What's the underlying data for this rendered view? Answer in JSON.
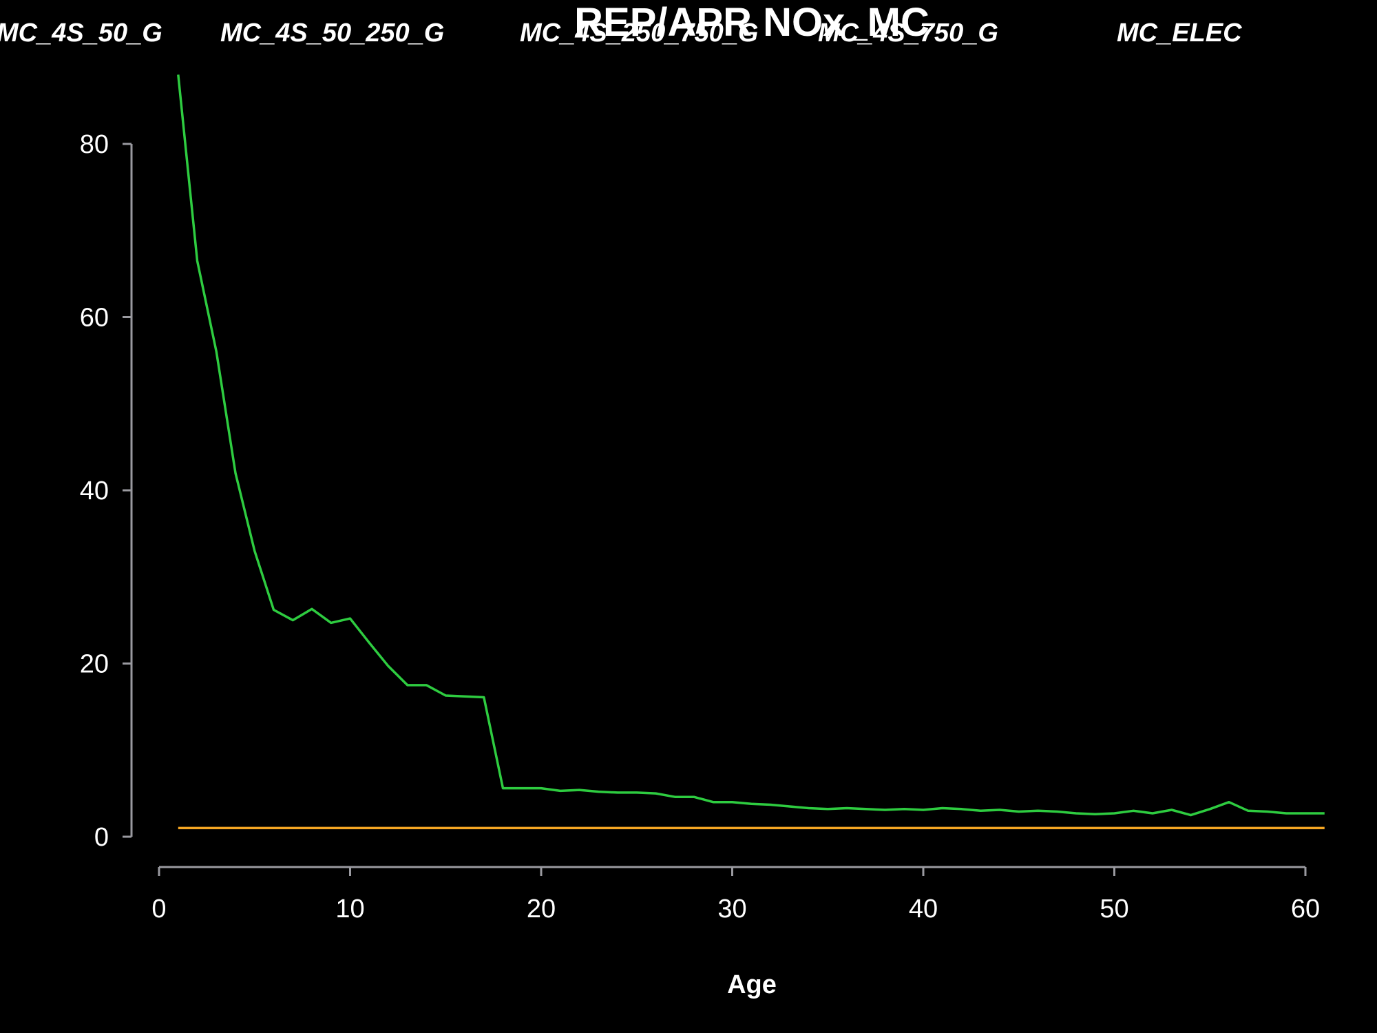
{
  "chart_data": {
    "type": "line",
    "title": "REP/APR NOx_MC",
    "xlabel": "Age",
    "ylabel": "",
    "xlim": [
      0,
      61
    ],
    "ylim": [
      0,
      88
    ],
    "xticks": [
      0,
      10,
      20,
      30,
      40,
      50,
      60
    ],
    "yticks": [
      0,
      20,
      40,
      60,
      80
    ],
    "grid": false,
    "legend_position": "top",
    "legend": [
      "MC_4S_50_G",
      "MC_4S_50_250_G",
      "MC_4S_250_750_G",
      "MC_4S_750_G",
      "MC_ELEC"
    ],
    "colors": {
      "background": "#000000",
      "axis": "#9a9aa0",
      "text": "#ffffff"
    },
    "series": [
      {
        "color": "#2ecc40",
        "x": [
          1,
          2,
          3,
          4,
          5,
          6,
          7,
          8,
          9,
          10,
          11,
          12,
          13,
          14,
          15,
          16,
          17,
          18,
          19,
          20,
          21,
          22,
          23,
          24,
          25,
          26,
          27,
          28,
          29,
          30,
          31,
          32,
          33,
          34,
          35,
          36,
          37,
          38,
          39,
          40,
          41,
          42,
          43,
          44,
          45,
          46,
          47,
          48,
          49,
          50,
          51,
          52,
          53,
          54,
          55,
          56,
          57,
          58,
          59,
          60,
          61
        ],
        "values": [
          88,
          66.5,
          56,
          42,
          33,
          26.2,
          25,
          26.3,
          24.7,
          25.2,
          22.4,
          19.7,
          17.5,
          17.5,
          16.3,
          16.2,
          16.1,
          5.6,
          5.6,
          5.6,
          5.3,
          5.4,
          5.2,
          5.1,
          5.1,
          5.0,
          4.6,
          4.6,
          4.0,
          4.0,
          3.8,
          3.7,
          3.5,
          3.3,
          3.2,
          3.3,
          3.2,
          3.1,
          3.2,
          3.1,
          3.3,
          3.2,
          3.0,
          3.1,
          2.9,
          3.0,
          2.9,
          2.7,
          2.6,
          2.7,
          3.0,
          2.7,
          3.1,
          2.5,
          3.2,
          4.0,
          3.0,
          2.9,
          2.7,
          2.7,
          2.7
        ]
      },
      {
        "color": "#f5a623",
        "x": [
          1,
          61
        ],
        "values": [
          1.0,
          1.0
        ]
      }
    ]
  }
}
